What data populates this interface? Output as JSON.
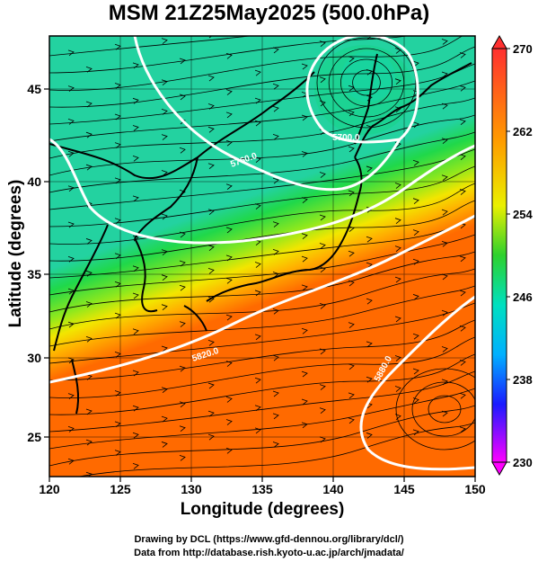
{
  "title": "MSM 21Z25May2025 (500.0hPa)",
  "xlabel": "Longitude (degrees)",
  "ylabel": "Latitude  (degrees)",
  "x_ticks": [
    "120",
    "125",
    "130",
    "135",
    "140",
    "145",
    "150"
  ],
  "y_ticks": [
    "25",
    "30",
    "35",
    "40",
    "45"
  ],
  "colorbar_ticks": [
    "270",
    "262",
    "254",
    "246",
    "238",
    "230"
  ],
  "contour_labels": [
    "5820.0",
    "5880.0",
    "5700.0",
    "5760.0",
    "5820.0",
    "5880.0"
  ],
  "credit_line1": "Drawing by DCL (https://www.gfd-dennou.org/library/dcl/)",
  "credit_line2": "Data from http://database.rish.kyoto-u.ac.jp/arch/jmadata/",
  "colors": {
    "cold_end": "#ff00ff",
    "blue": "#1a1aff",
    "cyan": "#00c8ff",
    "green": "#2dd12d",
    "yellow": "#f2e600",
    "orange": "#ff8000",
    "warm_end": "#ff3030"
  },
  "chart_data": {
    "type": "heatmap",
    "title": "MSM 21Z25May2025 (500.0hPa)",
    "xlabel": "Longitude (degrees)",
    "ylabel": "Latitude  (degrees)",
    "xlim": [
      120,
      150
    ],
    "ylim": [
      22.5,
      47.5
    ],
    "colorbar_range": [
      230,
      270
    ],
    "colorbar_ticks": [
      270,
      262,
      254,
      246,
      238,
      230
    ],
    "overlays": [
      "temperature shading",
      "geopotential height contours",
      "streamlines",
      "coastlines"
    ]
  }
}
